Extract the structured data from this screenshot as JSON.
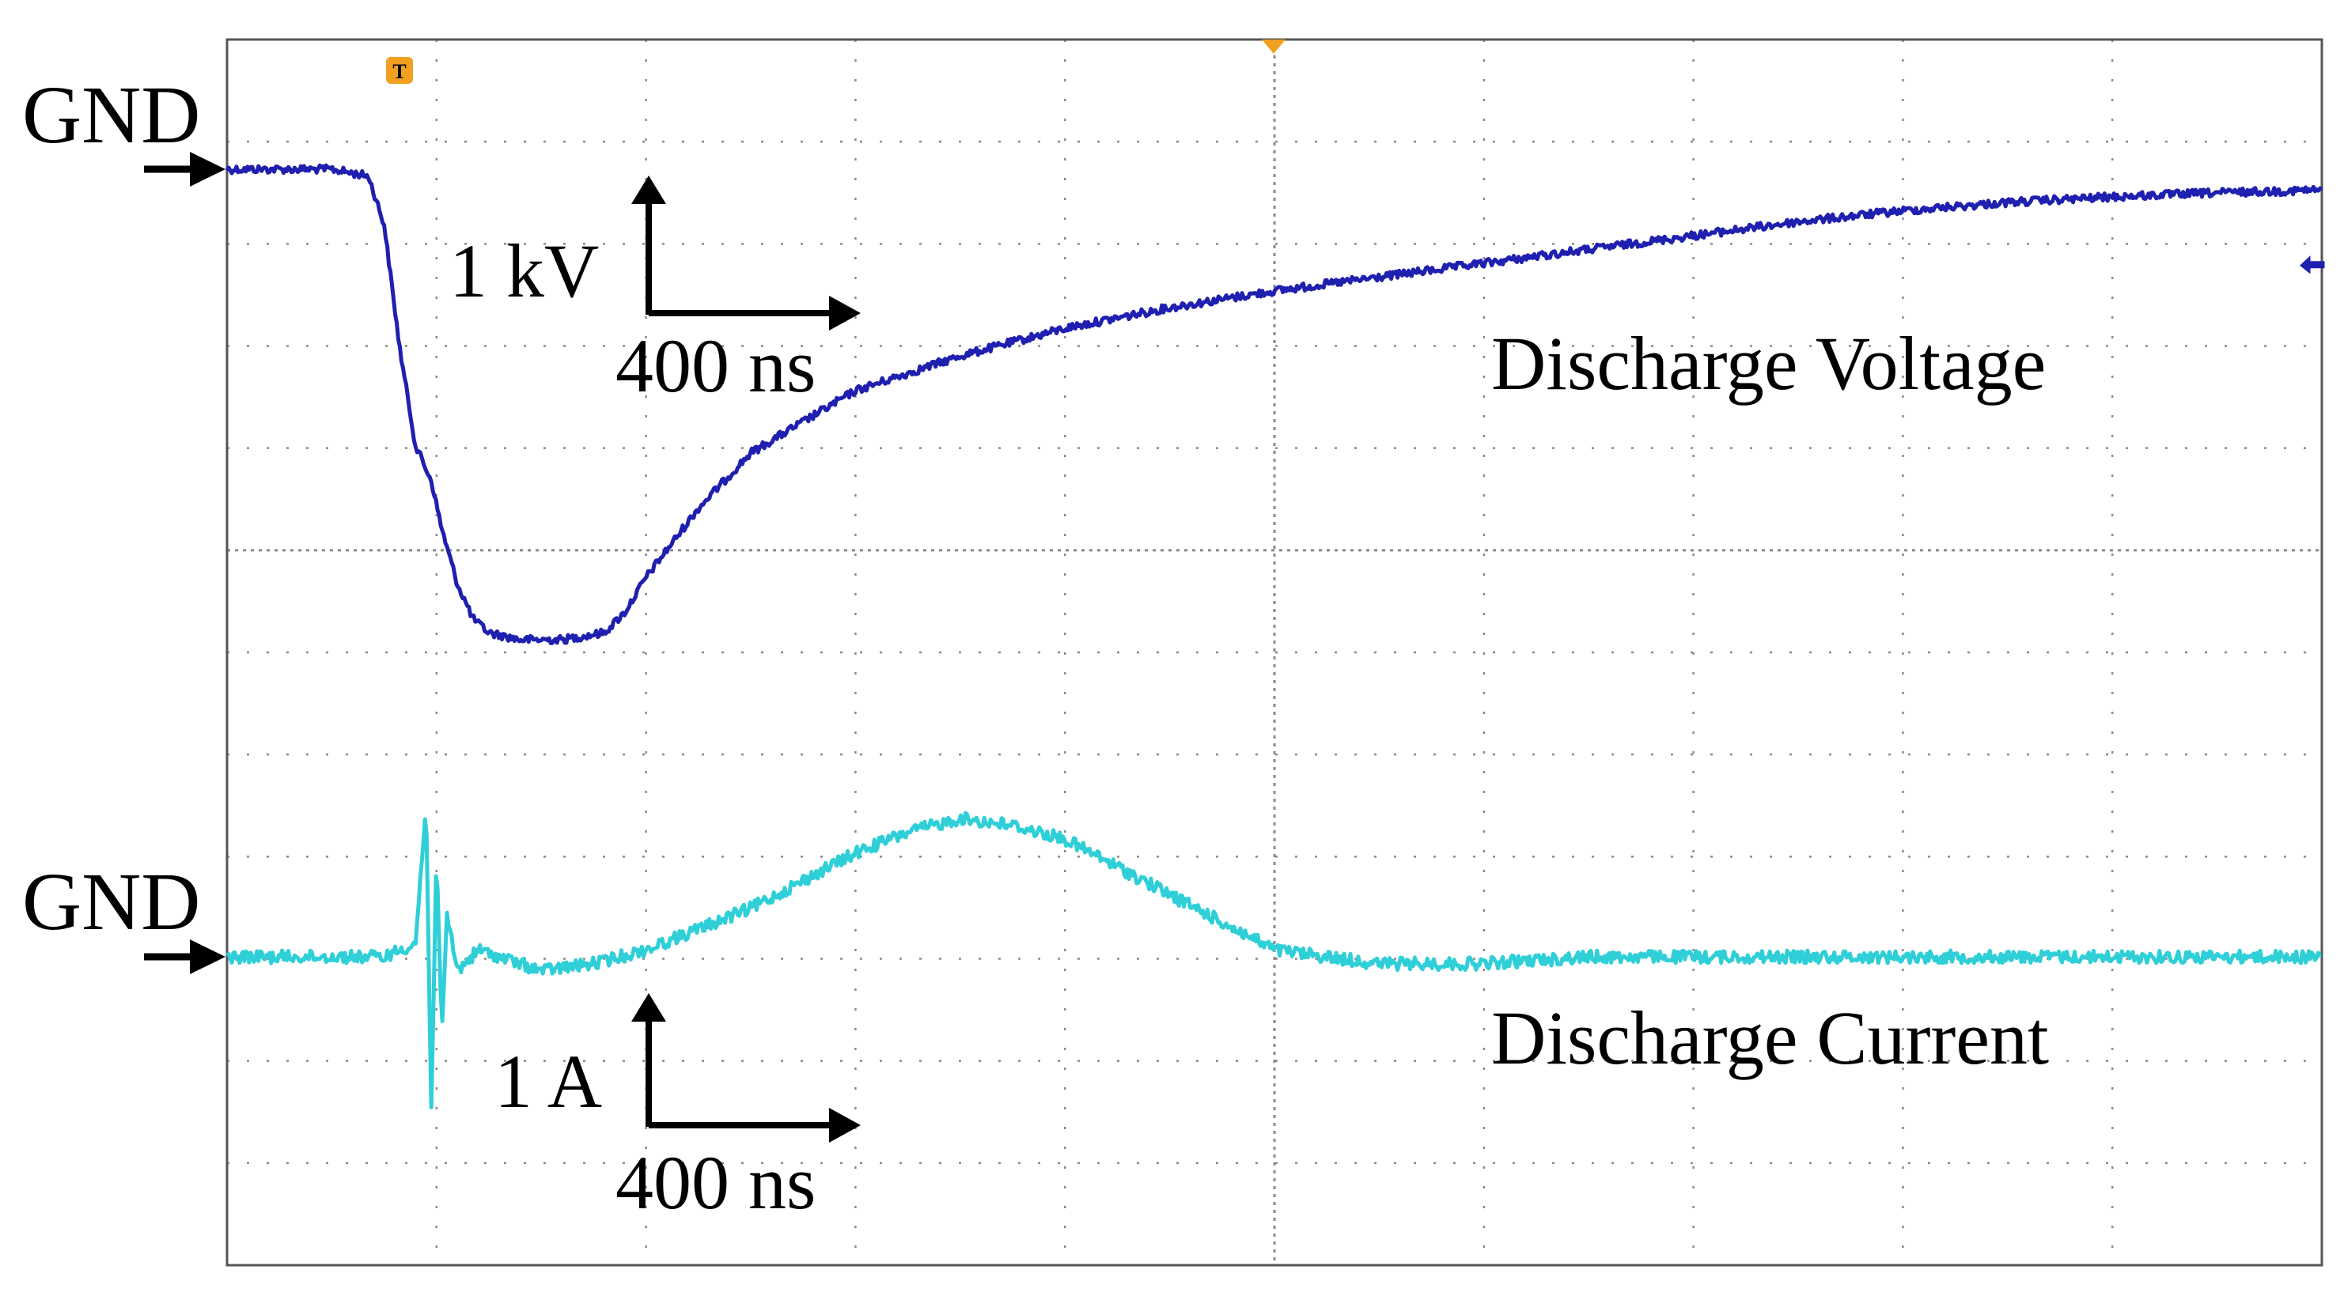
{
  "colors": {
    "background": "#ffffff",
    "grid": "#8a8a8a",
    "frame": "#555555",
    "voltage_trace": "#1f1fb0",
    "current_trace": "#2fcfd8",
    "annotation": "#000000",
    "trigger_marker": "#f2a020"
  },
  "labels": {
    "gnd_voltage": "GND",
    "gnd_current": "GND",
    "voltage_title": "Discharge Voltage",
    "current_title": "Discharge Current",
    "voltage_scale_v": "1 kV",
    "voltage_scale_t": "400 ns",
    "current_scale_v": "1 A",
    "current_scale_t": "400 ns",
    "trigger": "T"
  },
  "chart_data": [
    {
      "type": "line",
      "title": "Discharge Voltage",
      "xlabel": "",
      "ylabel": "",
      "x_units": "ns",
      "y_units": "kV",
      "scale": {
        "x_per_div": "400 ns",
        "y_per_div": "1 kV"
      },
      "xlim": [
        0,
        4000
      ],
      "grid": true,
      "series": [
        {
          "name": "Discharge Voltage",
          "color": "#1f1fb0",
          "x": [
            0,
            200,
            270,
            300,
            330,
            360,
            390,
            410,
            440,
            470,
            500,
            560,
            640,
            720,
            760,
            800,
            900,
            1000,
            1200,
            1400,
            1600,
            1800,
            2000,
            2200,
            2400,
            2600,
            2800,
            3000,
            3200,
            3400,
            3600,
            3800,
            4000
          ],
          "y": [
            0,
            0,
            -0.05,
            -0.4,
            -1.3,
            -2.0,
            -2.25,
            -2.6,
            -3.0,
            -3.25,
            -3.35,
            -3.4,
            -3.4,
            -3.35,
            -3.2,
            -2.95,
            -2.45,
            -2.05,
            -1.6,
            -1.35,
            -1.15,
            -1.0,
            -0.88,
            -0.78,
            -0.68,
            -0.58,
            -0.48,
            -0.38,
            -0.3,
            -0.24,
            -0.2,
            -0.17,
            -0.15
          ]
        }
      ]
    },
    {
      "type": "line",
      "title": "Discharge Current",
      "xlabel": "",
      "ylabel": "",
      "x_units": "ns",
      "y_units": "A",
      "scale": {
        "x_per_div": "400 ns",
        "y_per_div": "1 A"
      },
      "xlim": [
        0,
        4000
      ],
      "grid": true,
      "series": [
        {
          "name": "Discharge Current",
          "color": "#2fcfd8",
          "x": [
            0,
            300,
            360,
            380,
            390,
            400,
            410,
            420,
            440,
            480,
            520,
            600,
            700,
            800,
            900,
            1000,
            1100,
            1200,
            1300,
            1400,
            1500,
            1600,
            1700,
            1800,
            1900,
            2000,
            2200,
            2400,
            2600,
            2800,
            3000,
            3200,
            3400,
            3600,
            3800,
            4000
          ],
          "y": [
            0,
            0,
            0.1,
            1.1,
            -1.1,
            0.8,
            -0.6,
            0.3,
            -0.1,
            0.05,
            0,
            -0.1,
            -0.05,
            0.05,
            0.2,
            0.35,
            0.55,
            0.75,
            0.9,
            1.0,
            0.95,
            0.85,
            0.65,
            0.45,
            0.25,
            0.05,
            -0.05,
            -0.05,
            0,
            0,
            0,
            0,
            0,
            0,
            0,
            0
          ]
        }
      ]
    }
  ]
}
